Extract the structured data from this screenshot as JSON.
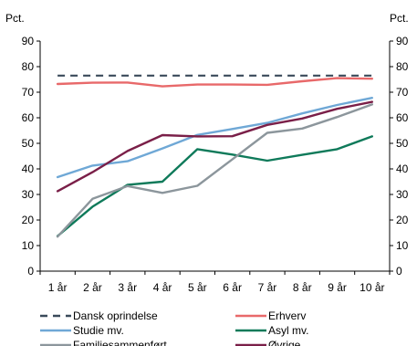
{
  "chart_data": {
    "type": "line",
    "ylabel_left": "Pct.",
    "ylabel_right": "Pct.",
    "ylim": [
      0,
      90
    ],
    "yticks": [
      0,
      10,
      20,
      30,
      40,
      50,
      60,
      70,
      80,
      90
    ],
    "categories": [
      "1 år",
      "2 år",
      "3 år",
      "4 år",
      "5 år",
      "6 år",
      "7 år",
      "8 år",
      "9 år",
      "10 år"
    ],
    "grid": false,
    "legend_position": "bottom",
    "series": [
      {
        "name": "Dansk oprindelse",
        "color": "#3a4a5a",
        "dash": true,
        "values": [
          76.5,
          76.5,
          76.5,
          76.5,
          76.5,
          76.5,
          76.5,
          76.5,
          76.5,
          76.5
        ]
      },
      {
        "name": "Erhverv",
        "color": "#e8696a",
        "dash": false,
        "values": [
          73.2,
          73.7,
          73.8,
          72.3,
          73.0,
          73.0,
          72.9,
          74.3,
          75.5,
          75.3
        ]
      },
      {
        "name": "Studie mv.",
        "color": "#6fa8d6",
        "dash": false,
        "values": [
          36.8,
          41.3,
          43.0,
          48.0,
          53.3,
          55.6,
          58.0,
          61.7,
          65.0,
          67.8
        ]
      },
      {
        "name": "Asyl mv.",
        "color": "#0f7a5a",
        "dash": false,
        "values": [
          13.7,
          25.2,
          33.8,
          35.0,
          47.7,
          45.6,
          43.2,
          45.5,
          47.7,
          52.7
        ]
      },
      {
        "name": "Familiesammenført",
        "color": "#8c969c",
        "dash": false,
        "values": [
          13.5,
          28.3,
          33.3,
          30.6,
          33.4,
          43.7,
          54.1,
          55.8,
          60.3,
          65.2
        ]
      },
      {
        "name": "Øvrige",
        "color": "#7a1f48",
        "dash": false,
        "values": [
          31.3,
          38.7,
          47.0,
          53.2,
          52.7,
          52.8,
          57.2,
          59.7,
          63.5,
          66.2
        ]
      }
    ]
  }
}
